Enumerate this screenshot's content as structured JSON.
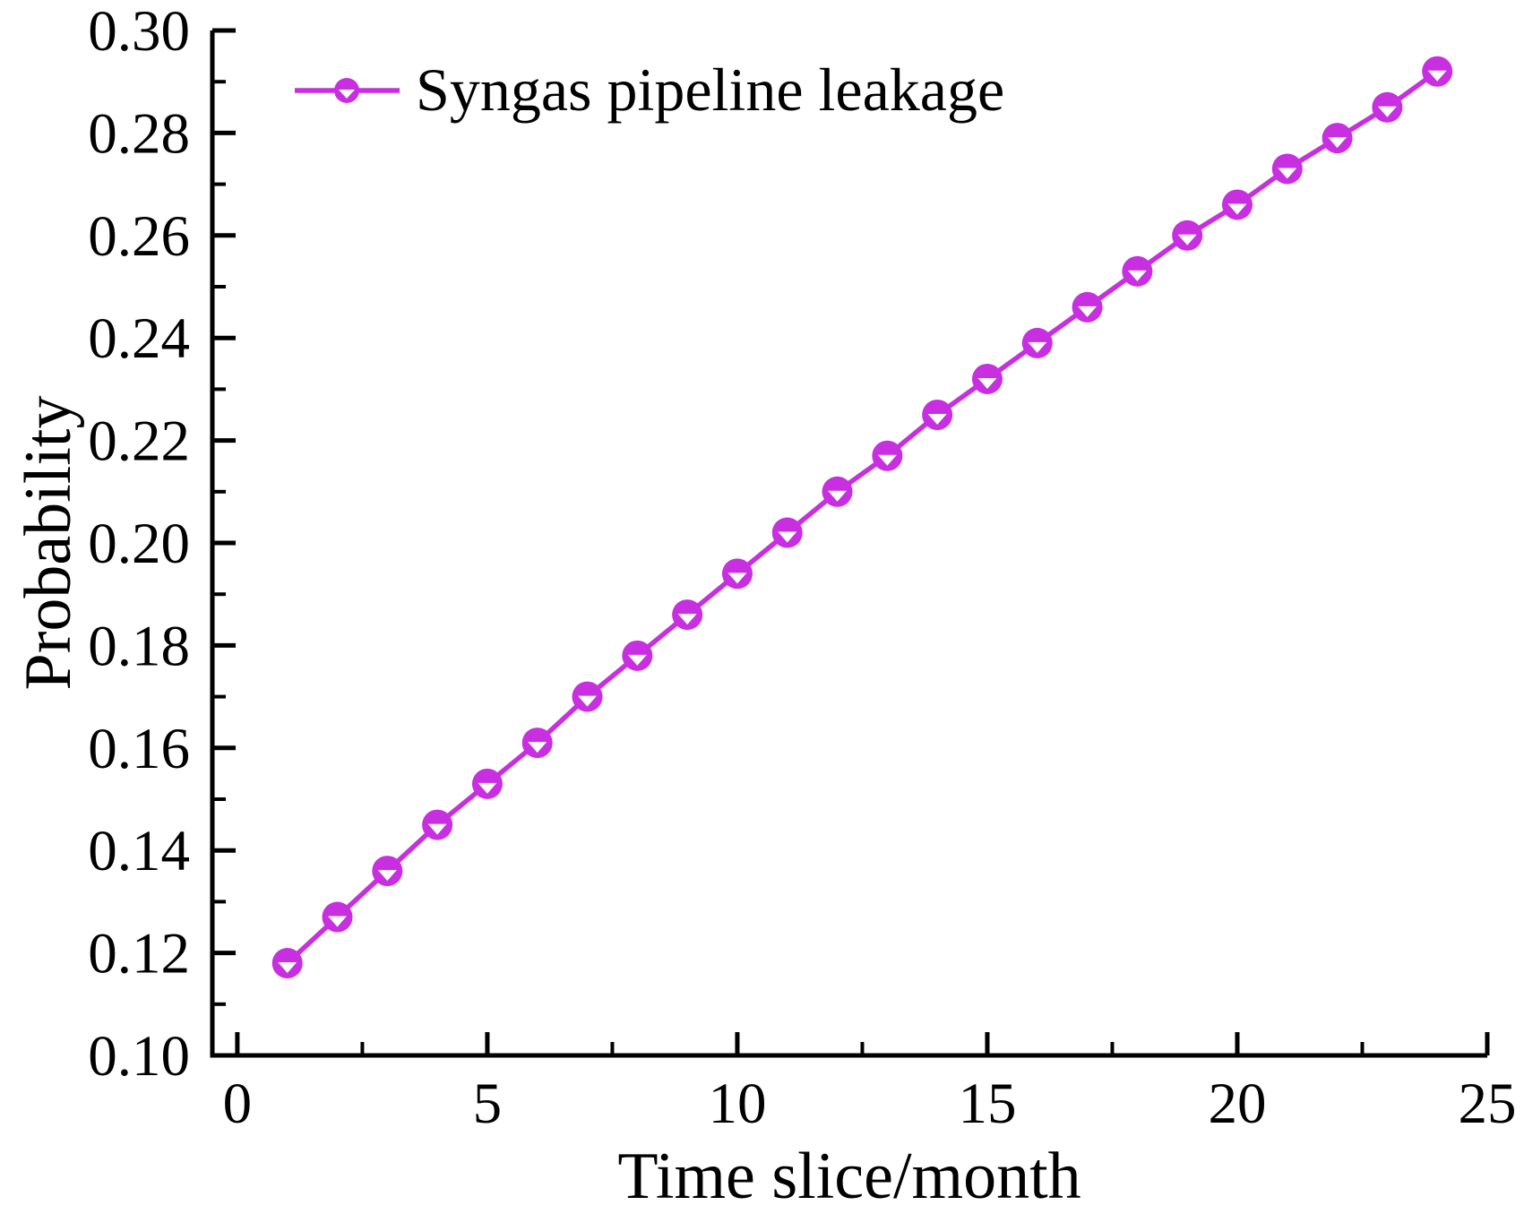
{
  "figure": {
    "background": "#ffffff",
    "axis_color": "#000000"
  },
  "chart_data": {
    "type": "line",
    "title": "",
    "xlabel": "Time slice/month",
    "ylabel": "Probability",
    "legend": {
      "position": "top-left-inside",
      "entries": [
        "Syngas pipeline leakage"
      ]
    },
    "axes": {
      "xlim": [
        -0.5,
        25
      ],
      "ylim": [
        0.1,
        0.3
      ],
      "x_major_ticks": [
        0,
        5,
        10,
        15,
        20,
        25
      ],
      "x_minor_ticks": [
        2.5,
        7.5,
        12.5,
        17.5,
        22.5
      ],
      "y_major_ticks": [
        0.1,
        0.12,
        0.14,
        0.16,
        0.18,
        0.2,
        0.22,
        0.24,
        0.26,
        0.28,
        0.3
      ],
      "y_minor_ticks": [
        0.11,
        0.13,
        0.15,
        0.17,
        0.19,
        0.21,
        0.23,
        0.25,
        0.27,
        0.29
      ],
      "grid": false,
      "frame": "L-shaped",
      "ticks_direction": "in"
    },
    "series": [
      {
        "name": "Syngas pipeline leakage",
        "color": "#C72FE0",
        "marker": "filled-circle-with-white-down-triangle",
        "x": [
          1,
          2,
          3,
          4,
          5,
          6,
          7,
          8,
          9,
          10,
          11,
          12,
          13,
          14,
          15,
          16,
          17,
          18,
          19,
          20,
          21,
          22,
          23,
          24
        ],
        "y": [
          0.118,
          0.127,
          0.136,
          0.145,
          0.153,
          0.161,
          0.17,
          0.178,
          0.186,
          0.194,
          0.202,
          0.21,
          0.217,
          0.225,
          0.232,
          0.239,
          0.246,
          0.253,
          0.26,
          0.266,
          0.273,
          0.279,
          0.285,
          0.292
        ]
      }
    ]
  }
}
